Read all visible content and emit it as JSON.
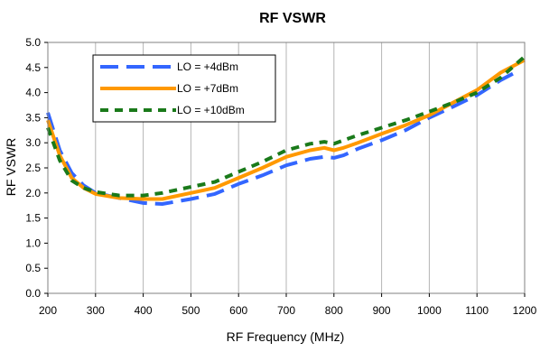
{
  "chart_data": {
    "type": "line",
    "title": "RF VSWR",
    "xlabel": "RF Frequency (MHz)",
    "ylabel": "RF VSWR",
    "xlim": [
      200,
      1200
    ],
    "ylim": [
      0.0,
      5.0
    ],
    "xticks": [
      200,
      300,
      400,
      500,
      600,
      700,
      800,
      900,
      1000,
      1100,
      1200
    ],
    "yticks": [
      0.0,
      0.5,
      1.0,
      1.5,
      2.0,
      2.5,
      3.0,
      3.5,
      4.0,
      4.5,
      5.0
    ],
    "ytick_labels": [
      "0.0",
      "0.5",
      "1.0",
      "1.5",
      "2.0",
      "2.5",
      "3.0",
      "3.5",
      "4.0",
      "4.5",
      "5.0"
    ],
    "grid": "vertical",
    "legend_position": "top-left",
    "series": [
      {
        "name": "LO = +4dBm",
        "color": "#3366ff",
        "style": "dashed",
        "x": [
          200,
          225,
          250,
          275,
          300,
          350,
          400,
          440,
          500,
          550,
          600,
          650,
          700,
          750,
          780,
          800,
          820,
          850,
          900,
          950,
          1000,
          1050,
          1100,
          1150,
          1180
        ],
        "y": [
          3.6,
          2.85,
          2.4,
          2.15,
          2.0,
          1.9,
          1.8,
          1.78,
          1.88,
          1.98,
          2.18,
          2.35,
          2.55,
          2.68,
          2.72,
          2.7,
          2.75,
          2.88,
          3.05,
          3.25,
          3.5,
          3.72,
          3.95,
          4.25,
          4.4
        ]
      },
      {
        "name": "LO = +7dBm",
        "color": "#ff9900",
        "style": "solid",
        "x": [
          200,
          225,
          250,
          275,
          300,
          350,
          400,
          440,
          500,
          550,
          600,
          650,
          700,
          750,
          780,
          800,
          820,
          850,
          900,
          950,
          1000,
          1050,
          1100,
          1150,
          1200
        ],
        "y": [
          3.45,
          2.75,
          2.3,
          2.1,
          1.98,
          1.9,
          1.88,
          1.88,
          2.0,
          2.1,
          2.3,
          2.5,
          2.72,
          2.85,
          2.9,
          2.85,
          2.9,
          3.0,
          3.18,
          3.35,
          3.55,
          3.8,
          4.05,
          4.4,
          4.65
        ]
      },
      {
        "name": "LO = +10dBm",
        "color": "#1a7a1a",
        "style": "dashed",
        "x": [
          200,
          225,
          250,
          275,
          300,
          350,
          400,
          440,
          500,
          550,
          600,
          650,
          700,
          750,
          780,
          800,
          820,
          850,
          900,
          950,
          1000,
          1050,
          1100,
          1150,
          1200
        ],
        "y": [
          3.3,
          2.65,
          2.25,
          2.1,
          2.02,
          1.95,
          1.95,
          2.0,
          2.12,
          2.22,
          2.42,
          2.62,
          2.85,
          2.98,
          3.02,
          2.98,
          3.05,
          3.15,
          3.3,
          3.45,
          3.62,
          3.8,
          4.0,
          4.3,
          4.72
        ]
      }
    ]
  }
}
